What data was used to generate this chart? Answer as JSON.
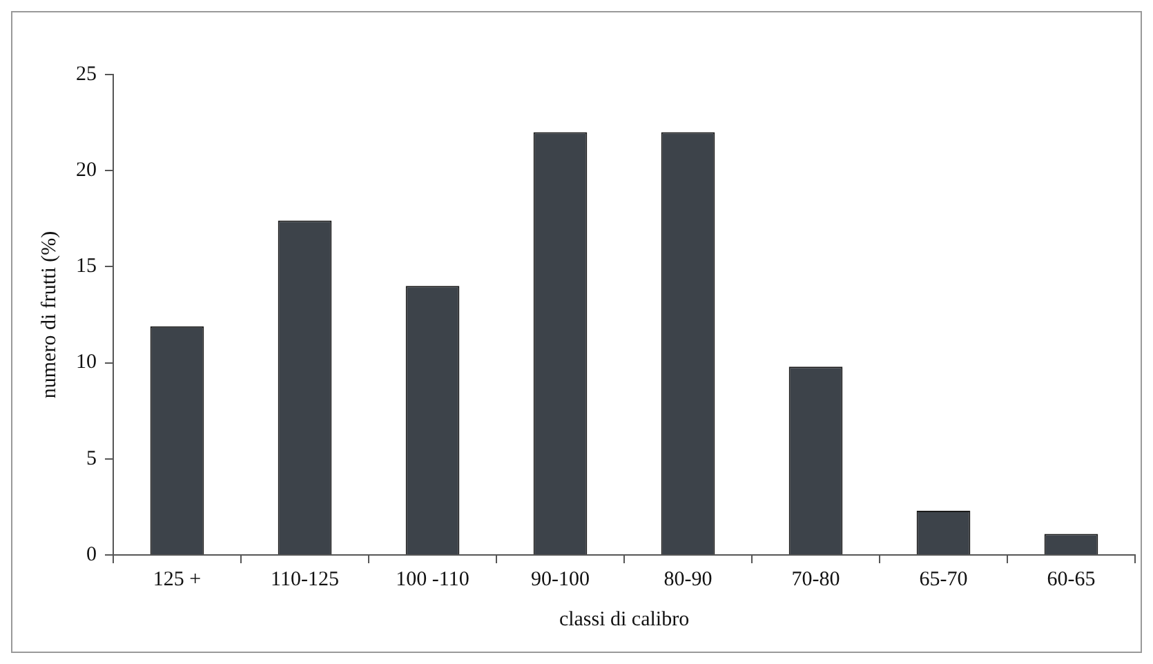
{
  "chart_data": {
    "type": "bar",
    "xlabel": "classi di calibro",
    "ylabel": "numero di frutti (%)",
    "categories": [
      "125 +",
      "110-125",
      "100 -110",
      "90-100",
      "80-90",
      "70-80",
      "65-70",
      "60-65"
    ],
    "values": [
      11.9,
      17.4,
      14.0,
      22.0,
      22.0,
      9.8,
      2.3,
      1.1
    ],
    "color": "#3d434a",
    "ylim": [
      0,
      25
    ],
    "yticks": [
      0,
      5,
      10,
      15,
      20,
      25
    ],
    "grid": false,
    "legend": false
  }
}
